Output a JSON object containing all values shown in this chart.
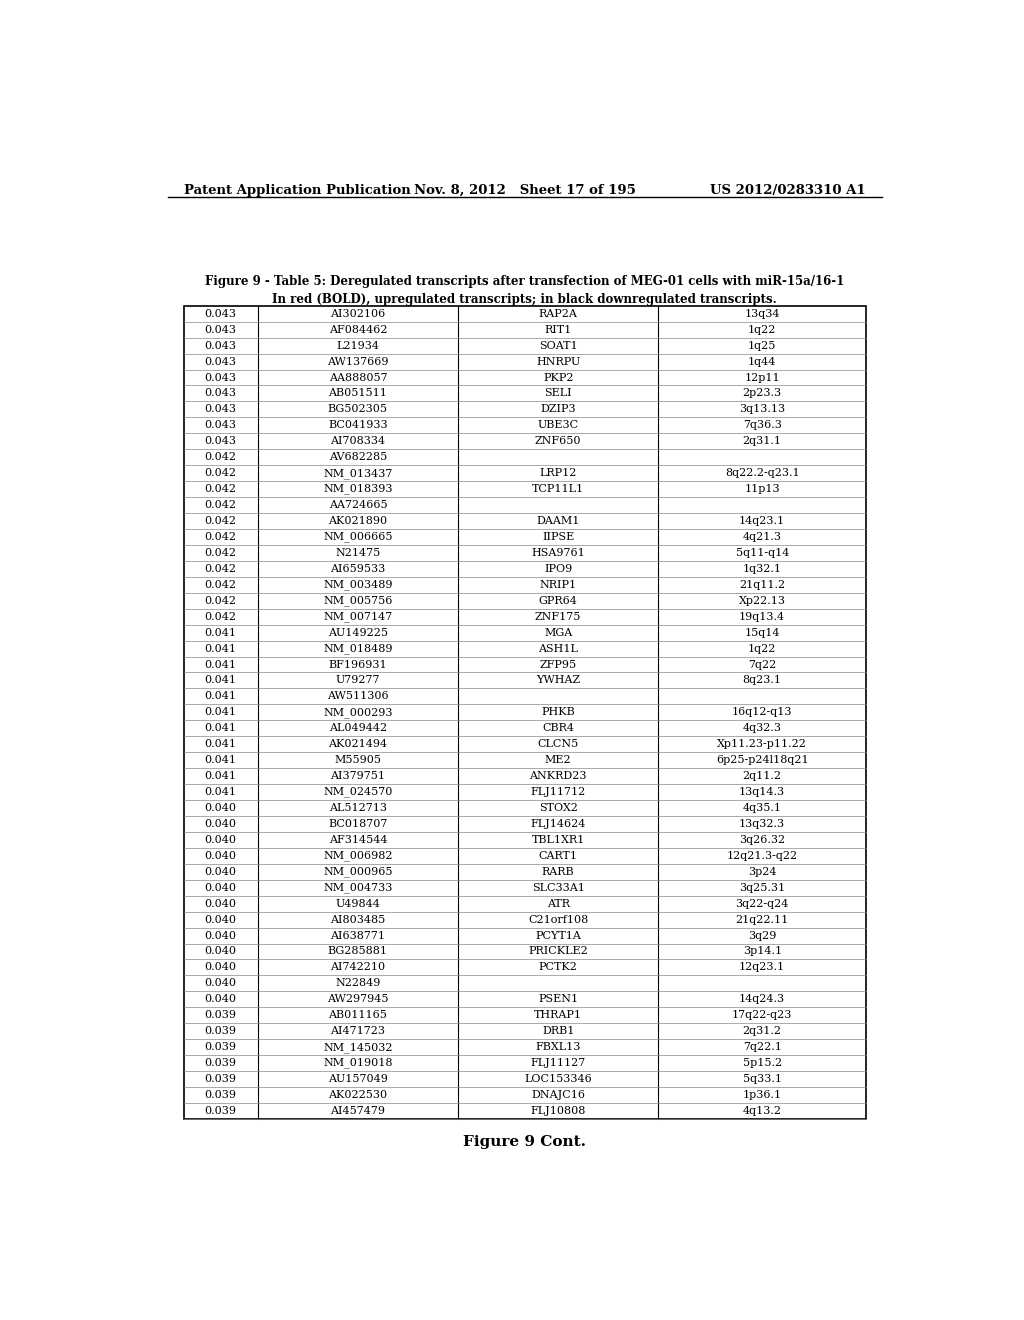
{
  "header_left": "Patent Application Publication",
  "header_middle": "Nov. 8, 2012   Sheet 17 of 195",
  "header_right": "US 2012/0283310 A1",
  "figure_caption_line1": "Figure 9 - Table 5: Deregulated transcripts after transfection of MEG-01 cells with miR-15a/16-1",
  "figure_caption_line2": "In red (BOLD), upregulated transcripts; in black downregulated transcripts.",
  "footer": "Figure 9 Cont.",
  "table_data": [
    [
      "0.043",
      "AI302106",
      "RAP2A",
      "13q34"
    ],
    [
      "0.043",
      "AF084462",
      "RIT1",
      "1q22"
    ],
    [
      "0.043",
      "L21934",
      "SOAT1",
      "1q25"
    ],
    [
      "0.043",
      "AW137669",
      "HNRPU",
      "1q44"
    ],
    [
      "0.043",
      "AA888057",
      "PKP2",
      "12p11"
    ],
    [
      "0.043",
      "AB051511",
      "SELI",
      "2p23.3"
    ],
    [
      "0.043",
      "BG502305",
      "DZIP3",
      "3q13.13"
    ],
    [
      "0.043",
      "BC041933",
      "UBE3C",
      "7q36.3"
    ],
    [
      "0.043",
      "AI708334",
      "ZNF650",
      "2q31.1"
    ],
    [
      "0.042",
      "AV682285",
      "",
      ""
    ],
    [
      "0.042",
      "NM_013437",
      "LRP12",
      "8q22.2-q23.1"
    ],
    [
      "0.042",
      "NM_018393",
      "TCP11L1",
      "11p13"
    ],
    [
      "0.042",
      "AA724665",
      "",
      ""
    ],
    [
      "0.042",
      "AK021890",
      "DAAM1",
      "14q23.1"
    ],
    [
      "0.042",
      "NM_006665",
      "IIPSE",
      "4q21.3"
    ],
    [
      "0.042",
      "N21475",
      "HSA9761",
      "5q11-q14"
    ],
    [
      "0.042",
      "AI659533",
      "IPO9",
      "1q32.1"
    ],
    [
      "0.042",
      "NM_003489",
      "NRIP1",
      "21q11.2"
    ],
    [
      "0.042",
      "NM_005756",
      "GPR64",
      "Xp22.13"
    ],
    [
      "0.042",
      "NM_007147",
      "ZNF175",
      "19q13.4"
    ],
    [
      "0.041",
      "AU149225",
      "MGA",
      "15q14"
    ],
    [
      "0.041",
      "NM_018489",
      "ASH1L",
      "1q22"
    ],
    [
      "0.041",
      "BF196931",
      "ZFP95",
      "7q22"
    ],
    [
      "0.041",
      "U79277",
      "YWHAZ",
      "8q23.1"
    ],
    [
      "0.041",
      "AW511306",
      "",
      ""
    ],
    [
      "0.041",
      "NM_000293",
      "PHKB",
      "16q12-q13"
    ],
    [
      "0.041",
      "AL049442",
      "CBR4",
      "4q32.3"
    ],
    [
      "0.041",
      "AK021494",
      "CLCN5",
      "Xp11.23-p11.22"
    ],
    [
      "0.041",
      "M55905",
      "ME2",
      "6p25-p24l18q21"
    ],
    [
      "0.041",
      "AI379751",
      "ANKRD23",
      "2q11.2"
    ],
    [
      "0.041",
      "NM_024570",
      "FLJ11712",
      "13q14.3"
    ],
    [
      "0.040",
      "AL512713",
      "STOX2",
      "4q35.1"
    ],
    [
      "0.040",
      "BC018707",
      "FLJ14624",
      "13q32.3"
    ],
    [
      "0.040",
      "AF314544",
      "TBL1XR1",
      "3q26.32"
    ],
    [
      "0.040",
      "NM_006982",
      "CART1",
      "12q21.3-q22"
    ],
    [
      "0.040",
      "NM_000965",
      "RARB",
      "3p24"
    ],
    [
      "0.040",
      "NM_004733",
      "SLC33A1",
      "3q25.31"
    ],
    [
      "0.040",
      "U49844",
      "ATR",
      "3q22-q24"
    ],
    [
      "0.040",
      "AI803485",
      "C21orf108",
      "21q22.11"
    ],
    [
      "0.040",
      "AI638771",
      "PCYT1A",
      "3q29"
    ],
    [
      "0.040",
      "BG285881",
      "PRICKLE2",
      "3p14.1"
    ],
    [
      "0.040",
      "AI742210",
      "PCTK2",
      "12q23.1"
    ],
    [
      "0.040",
      "N22849",
      "",
      ""
    ],
    [
      "0.040",
      "AW297945",
      "PSEN1",
      "14q24.3"
    ],
    [
      "0.039",
      "AB011165",
      "THRAP1",
      "17q22-q23"
    ],
    [
      "0.039",
      "AI471723",
      "DRB1",
      "2q31.2"
    ],
    [
      "0.039",
      "NM_145032",
      "FBXL13",
      "7q22.1"
    ],
    [
      "0.039",
      "NM_019018",
      "FLJ11127",
      "5p15.2"
    ],
    [
      "0.039",
      "AU157049",
      "LOC153346",
      "5q33.1"
    ],
    [
      "0.039",
      "AK022530",
      "DNAJC16",
      "1p36.1"
    ],
    [
      "0.039",
      "AI457479",
      "FLJ10808",
      "4q13.2"
    ]
  ],
  "bg_color": "#ffffff",
  "text_color": "#000000",
  "line_color": "#888888",
  "header_font_size": 9.5,
  "caption_font_size": 8.5,
  "table_font_size": 8.0,
  "footer_font_size": 11
}
